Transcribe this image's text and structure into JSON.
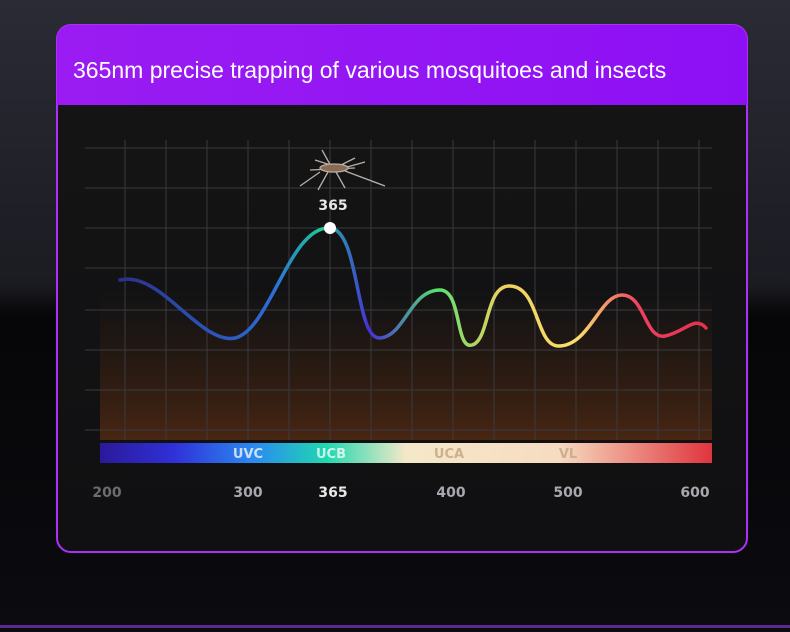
{
  "title": "365nm precise trapping of various mosquitoes and insects",
  "peak_label": "365",
  "bands": [
    "UVC",
    "UCB",
    "UCA",
    "VL"
  ],
  "axis_labels": [
    "200",
    "300",
    "365",
    "400",
    "500",
    "600"
  ]
}
